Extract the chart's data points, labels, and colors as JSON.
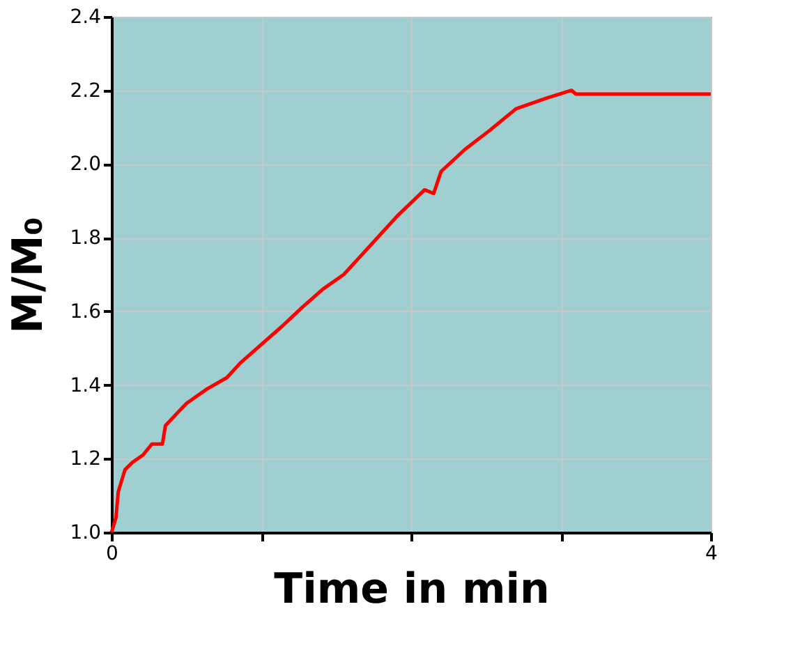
{
  "chart_data": {
    "type": "line",
    "xlabel": "Time in min",
    "ylabel": "M/M₀",
    "x": [
      0,
      0.03,
      0.045,
      0.09,
      0.14,
      0.21,
      0.27,
      0.34,
      0.36,
      0.5,
      0.64,
      0.77,
      0.86,
      1.0,
      1.14,
      1.27,
      1.41,
      1.55,
      1.73,
      1.91,
      2.09,
      2.15,
      2.2,
      2.36,
      2.52,
      2.7,
      2.91,
      3.07,
      3.1,
      4
    ],
    "series": [
      {
        "color": "#ff0000",
        "values": [
          1.0,
          1.04,
          1.11,
          1.17,
          1.19,
          1.21,
          1.24,
          1.24,
          1.29,
          1.35,
          1.39,
          1.42,
          1.46,
          1.51,
          1.56,
          1.61,
          1.66,
          1.7,
          1.78,
          1.86,
          1.93,
          1.92,
          1.98,
          2.04,
          2.09,
          2.15,
          2.18,
          2.2,
          2.19,
          2.19
        ]
      }
    ],
    "xlim": [
      0,
      4
    ],
    "xticks": [
      0,
      {
        "value": 1,
        "label": null
      },
      {
        "value": 2,
        "label": null
      },
      {
        "value": 3,
        "label": null
      },
      4
    ],
    "ylim": [
      1.0,
      2.4
    ],
    "yticks": [
      {
        "value": 1.0,
        "label": "1.0"
      },
      {
        "value": 1.2,
        "label": "1.2"
      },
      {
        "value": 1.4,
        "label": "1.4"
      },
      {
        "value": 1.6,
        "label": "1.6"
      },
      {
        "value": 1.8,
        "label": "1.8"
      },
      {
        "value": 2.0,
        "label": "2.0"
      },
      {
        "value": 2.2,
        "label": "2.2"
      },
      {
        "value": 2.4,
        "label": "2.4"
      }
    ],
    "grid": true,
    "marker": "none",
    "line_style": "solid"
  }
}
